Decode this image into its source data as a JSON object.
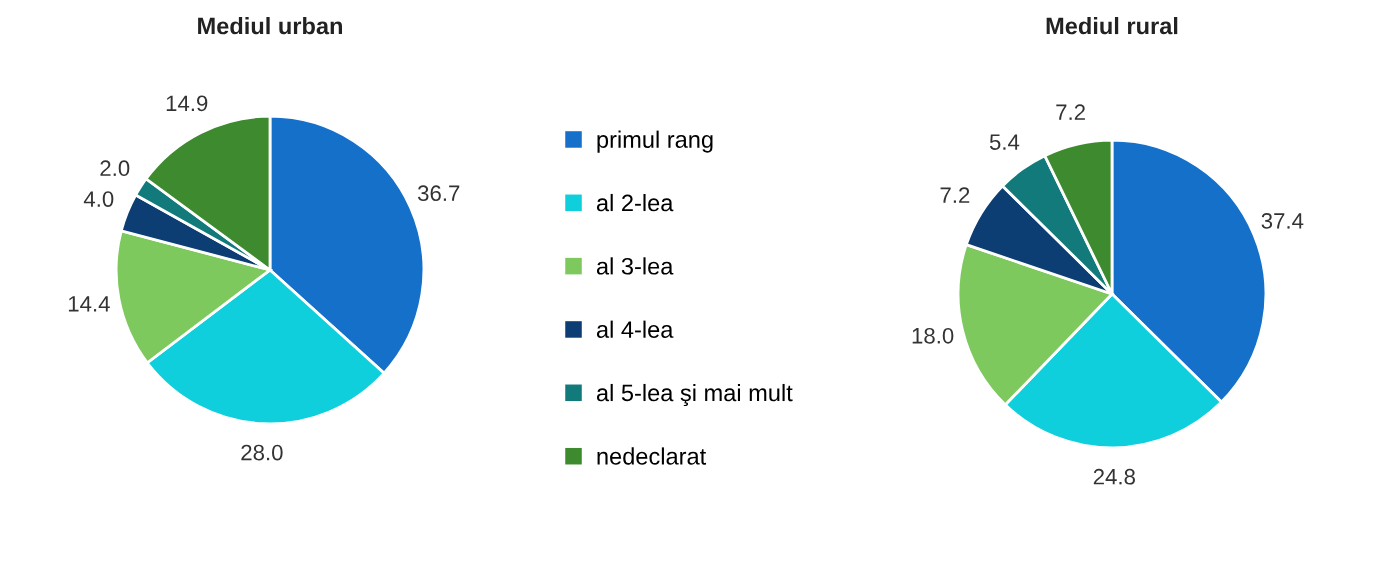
{
  "chart_data": [
    {
      "type": "pie",
      "title": "Mediul urban",
      "categories": [
        "primul rang",
        "al 2-lea",
        "al 3-lea",
        "al 4-lea",
        "al 5-lea şi mai mult",
        "nedeclarat"
      ],
      "values": [
        36.7,
        28.0,
        14.4,
        4.0,
        2.0,
        14.9
      ],
      "value_labels": [
        "36.7",
        "28.0",
        "14.4",
        "4.0",
        "2.0",
        "14.9"
      ],
      "colors": [
        "#1570c9",
        "#0fcfdc",
        "#7dc95e",
        "#0c3e73",
        "#127a7a",
        "#3e8a2e"
      ],
      "legend": "right"
    },
    {
      "type": "pie",
      "title": "Mediul rural",
      "categories": [
        null,
        null,
        null,
        null,
        null,
        null
      ],
      "values": [
        37.4,
        24.8,
        18.0,
        7.2,
        5.4,
        7.2
      ],
      "value_labels": [
        "37.4",
        "24.8",
        "18.0",
        "7.2",
        "5.4",
        "7.2"
      ],
      "colors": [
        "#1570c9",
        "#0fcfdc",
        "#7dc95e",
        "#0c3e73",
        "#127a7a",
        "#3e8a2e"
      ]
    }
  ]
}
